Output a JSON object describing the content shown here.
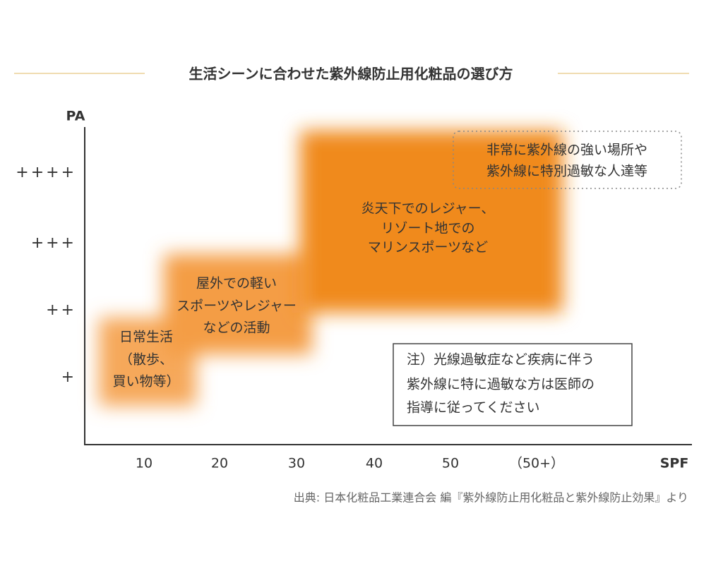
{
  "title": "生活シーンに合わせた紫外線防止用化粧品の選び方",
  "axes": {
    "y_label": "PA",
    "x_label": "SPF",
    "y_ticks": [
      "++++",
      "+++",
      "++",
      "+"
    ],
    "x_ticks": [
      "10",
      "20",
      "30",
      "40",
      "50",
      "（50+）"
    ]
  },
  "regions": [
    {
      "lines": [
        "日常生活",
        "（散歩、",
        "買い物等）"
      ]
    },
    {
      "lines": [
        "屋外での軽い",
        "スポーツやレジャー",
        "などの活動"
      ]
    },
    {
      "lines": [
        "炎天下でのレジャー、",
        "リゾート地での",
        "マリンスポーツなど"
      ]
    }
  ],
  "callout": {
    "lines": [
      "非常に紫外線の強い場所や",
      "紫外線に特別過敏な人達等"
    ]
  },
  "note": {
    "lines": [
      "注）光線過敏症など疾病に伴う",
      "紫外線に特に過敏な方は医師の",
      "指導に従ってください"
    ]
  },
  "source": "出典: 日本化粧品工業連合会 編『紫外線防止用化粧品と紫外線防止効果』より"
}
